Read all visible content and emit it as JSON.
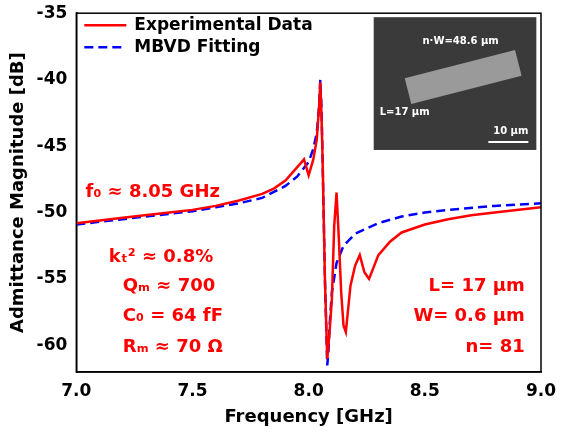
{
  "chart_data": {
    "type": "line",
    "x_label": "Frequency [GHz]",
    "y_label": "Admittance Magnitude [dB]",
    "xlim": [
      7.0,
      9.0
    ],
    "xticks": [
      {
        "value": 7.0,
        "label": "7.0"
      },
      {
        "value": 7.5,
        "label": "7.5"
      },
      {
        "value": 8.0,
        "label": "8.0"
      },
      {
        "value": 8.5,
        "label": "8.5"
      },
      {
        "value": 9.0,
        "label": "9.0"
      }
    ],
    "ylim": [
      -62,
      -35
    ],
    "yticks": [
      -60,
      -55,
      -50,
      -45,
      -40,
      -35
    ],
    "grid": false,
    "legend": "top-left",
    "series": [
      {
        "name": "Experimental Data",
        "color": "#ff0000",
        "line_style": "solid",
        "x": [
          7.0,
          7.2,
          7.4,
          7.5,
          7.6,
          7.7,
          7.8,
          7.85,
          7.9,
          7.95,
          7.98,
          8.0,
          8.02,
          8.035,
          8.045,
          8.05,
          8.055,
          8.06,
          8.07,
          8.08,
          8.09,
          8.1,
          8.11,
          8.12,
          8.13,
          8.14,
          8.15,
          8.16,
          8.18,
          8.2,
          8.22,
          8.24,
          8.26,
          8.3,
          8.35,
          8.4,
          8.5,
          8.6,
          8.7,
          8.8,
          9.0
        ],
        "values": [
          -50.8,
          -50.4,
          -50.0,
          -49.8,
          -49.5,
          -49.1,
          -48.6,
          -48.2,
          -47.6,
          -46.6,
          -46.0,
          -47.2,
          -46.0,
          -44.5,
          -42.0,
          -40.2,
          -42.5,
          -46.0,
          -55.0,
          -61.0,
          -59.0,
          -56.5,
          -51.0,
          -48.5,
          -52.0,
          -56.0,
          -58.5,
          -59.0,
          -55.5,
          -54.0,
          -53.2,
          -54.5,
          -55.0,
          -53.2,
          -52.2,
          -51.5,
          -50.9,
          -50.5,
          -50.2,
          -50.0,
          -49.6
        ]
      },
      {
        "name": "MBVD Fitting",
        "color": "#0000ff",
        "line_style": "dashed",
        "x": [
          7.0,
          7.2,
          7.4,
          7.5,
          7.6,
          7.7,
          7.8,
          7.9,
          7.95,
          8.0,
          8.02,
          8.035,
          8.045,
          8.05,
          8.055,
          8.06,
          8.07,
          8.08,
          8.085,
          8.09,
          8.1,
          8.12,
          8.15,
          8.2,
          8.3,
          8.4,
          8.5,
          8.6,
          8.8,
          9.0
        ],
        "values": [
          -50.9,
          -50.5,
          -50.1,
          -49.9,
          -49.6,
          -49.3,
          -48.9,
          -48.0,
          -47.3,
          -46.2,
          -45.2,
          -44.0,
          -42.0,
          -40.0,
          -42.0,
          -46.0,
          -55.0,
          -61.5,
          -60.5,
          -58.5,
          -56.0,
          -53.8,
          -52.5,
          -51.6,
          -50.8,
          -50.3,
          -50.0,
          -49.8,
          -49.5,
          -49.3
        ]
      }
    ],
    "annotations": [
      "f₀ ≈ 8.05 GHz",
      "kₜ² ≈ 0.8%",
      "Qₘ ≈ 700",
      "C₀ = 64 fF",
      "Rₘ ≈ 70 Ω",
      "L= 17 μm",
      "W= 0.6 μm",
      "n= 81"
    ],
    "inset": {
      "labels": [
        "n·W=48.6 μm",
        "L=17 μm",
        "10 μm"
      ]
    }
  }
}
